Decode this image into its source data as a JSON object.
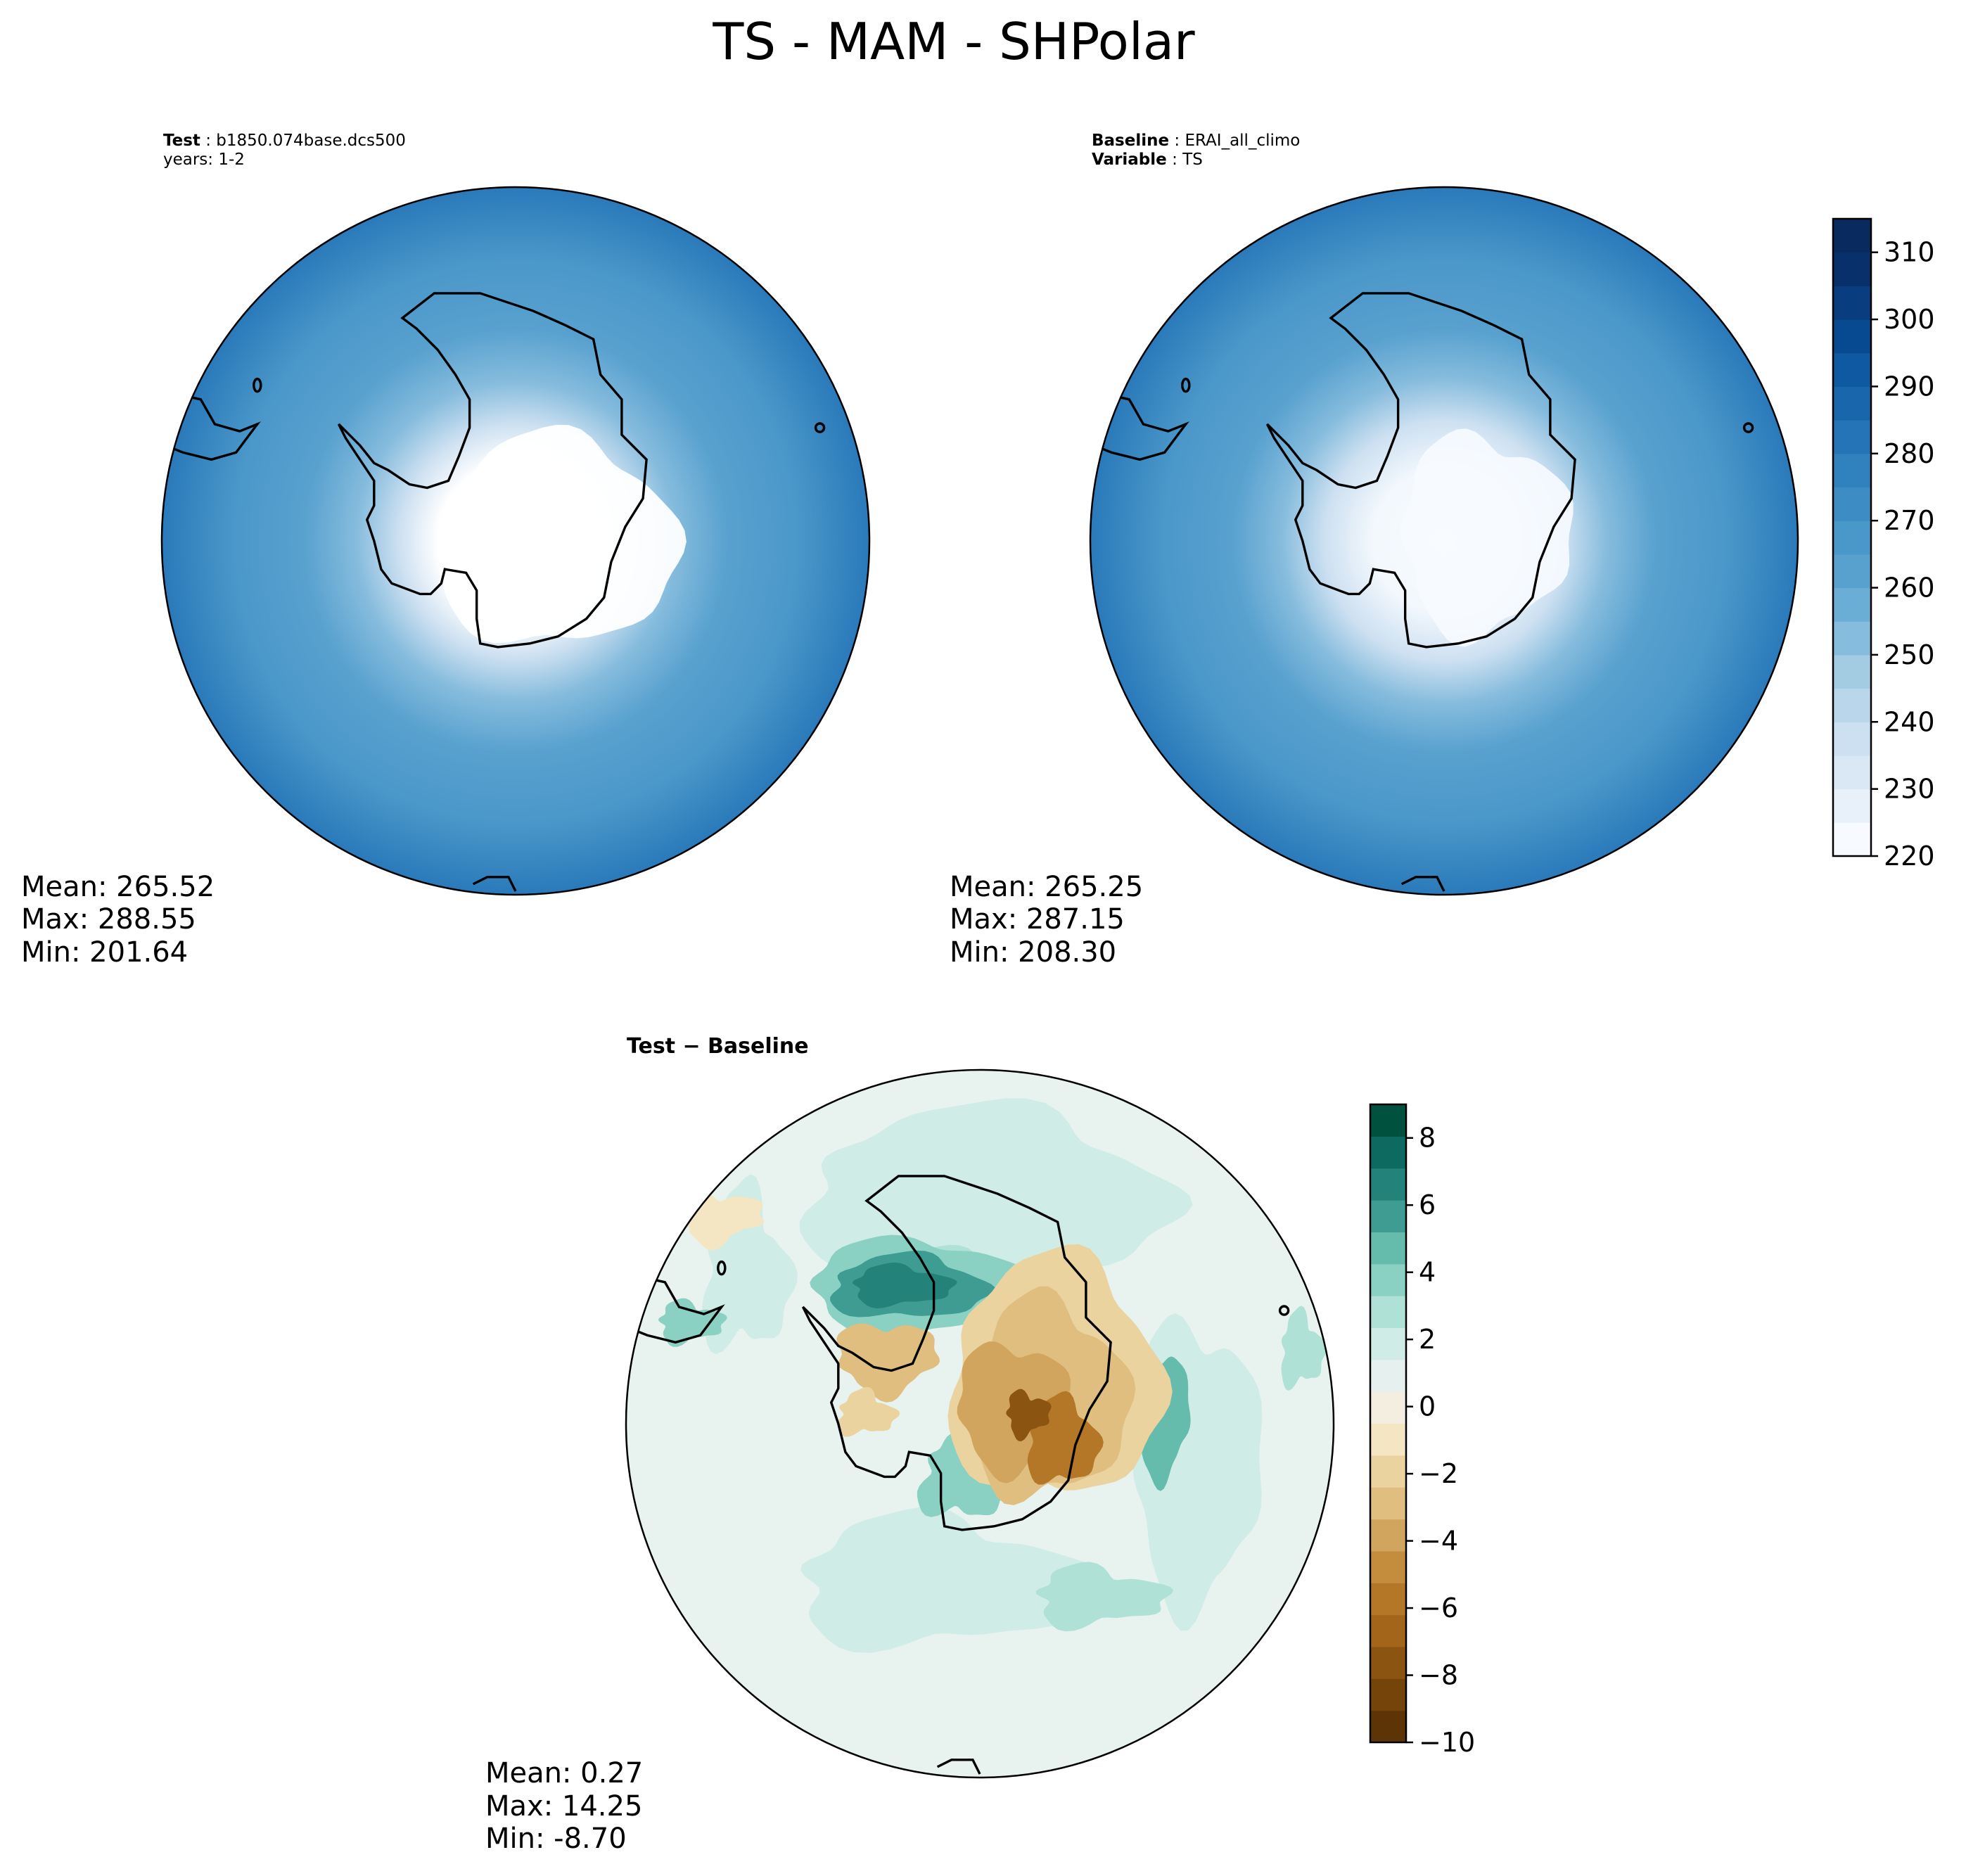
{
  "figure": {
    "title": "TS - MAM - SHPolar"
  },
  "panels": {
    "test": {
      "label_key": "Test",
      "label_value": "b1850.074base.dcs500",
      "years": "years: 1-2",
      "stats": {
        "mean": "Mean: 265.52",
        "max": "Max: 288.55",
        "min": "Min: 201.64"
      }
    },
    "baseline": {
      "label_key": "Baseline",
      "label_value": "ERAI_all_climo",
      "variable_key": "Variable",
      "variable_value": "TS",
      "stats": {
        "mean": "Mean: 265.25",
        "max": "Max: 287.15",
        "min": "Min: 208.30"
      }
    },
    "diff": {
      "title": "Test − Baseline",
      "stats": {
        "mean": "Mean:  0.27",
        "max": "Max: 14.25",
        "min": "Min: -8.70"
      }
    }
  },
  "colorbars": {
    "main": {
      "min": 220,
      "max": 315,
      "step": 5,
      "ticks": [
        "220",
        "230",
        "240",
        "250",
        "260",
        "270",
        "280",
        "290",
        "300",
        "310"
      ],
      "colors": [
        "#f7fbff",
        "#e8f1fa",
        "#dae8f6",
        "#cde0f1",
        "#bad6eb",
        "#a3cce3",
        "#86bcdd",
        "#6aaed6",
        "#58a1cf",
        "#4a97c9",
        "#3d8dc4",
        "#3082be",
        "#2474b7",
        "#1966ad",
        "#0f59a3",
        "#084a91",
        "#083d7f",
        "#08306b",
        "#082a5e"
      ]
    },
    "diff": {
      "min": -10,
      "max": 9,
      "step": 1,
      "ticks": [
        "−10",
        "−8",
        "−6",
        "−4",
        "−2",
        "0",
        "2",
        "4",
        "6",
        "8"
      ],
      "colors": [
        "#5c3406",
        "#74440a",
        "#8b5410",
        "#a3651a",
        "#b47627",
        "#c48c3d",
        "#d2a55f",
        "#dfbe7f",
        "#ebd3a0",
        "#f4e5c3",
        "#f3eee0",
        "#e6f1ef",
        "#cfece6",
        "#b0e1d7",
        "#8ad1c3",
        "#65bcac",
        "#3f9c92",
        "#23837a",
        "#0d6a61",
        "#01513f"
      ]
    }
  },
  "chart_data": [
    {
      "type": "contour",
      "panel": "Test",
      "variable": "TS",
      "stats": {
        "mean": 265.52,
        "max": 288.55,
        "min": 201.64
      }
    },
    {
      "type": "contour",
      "panel": "Baseline",
      "variable": "TS",
      "stats": {
        "mean": 265.25,
        "max": 287.15,
        "min": 208.3
      }
    },
    {
      "type": "contour",
      "panel": "Test − Baseline",
      "stats": {
        "mean": 0.27,
        "max": 14.25,
        "min": -8.7
      }
    }
  ]
}
